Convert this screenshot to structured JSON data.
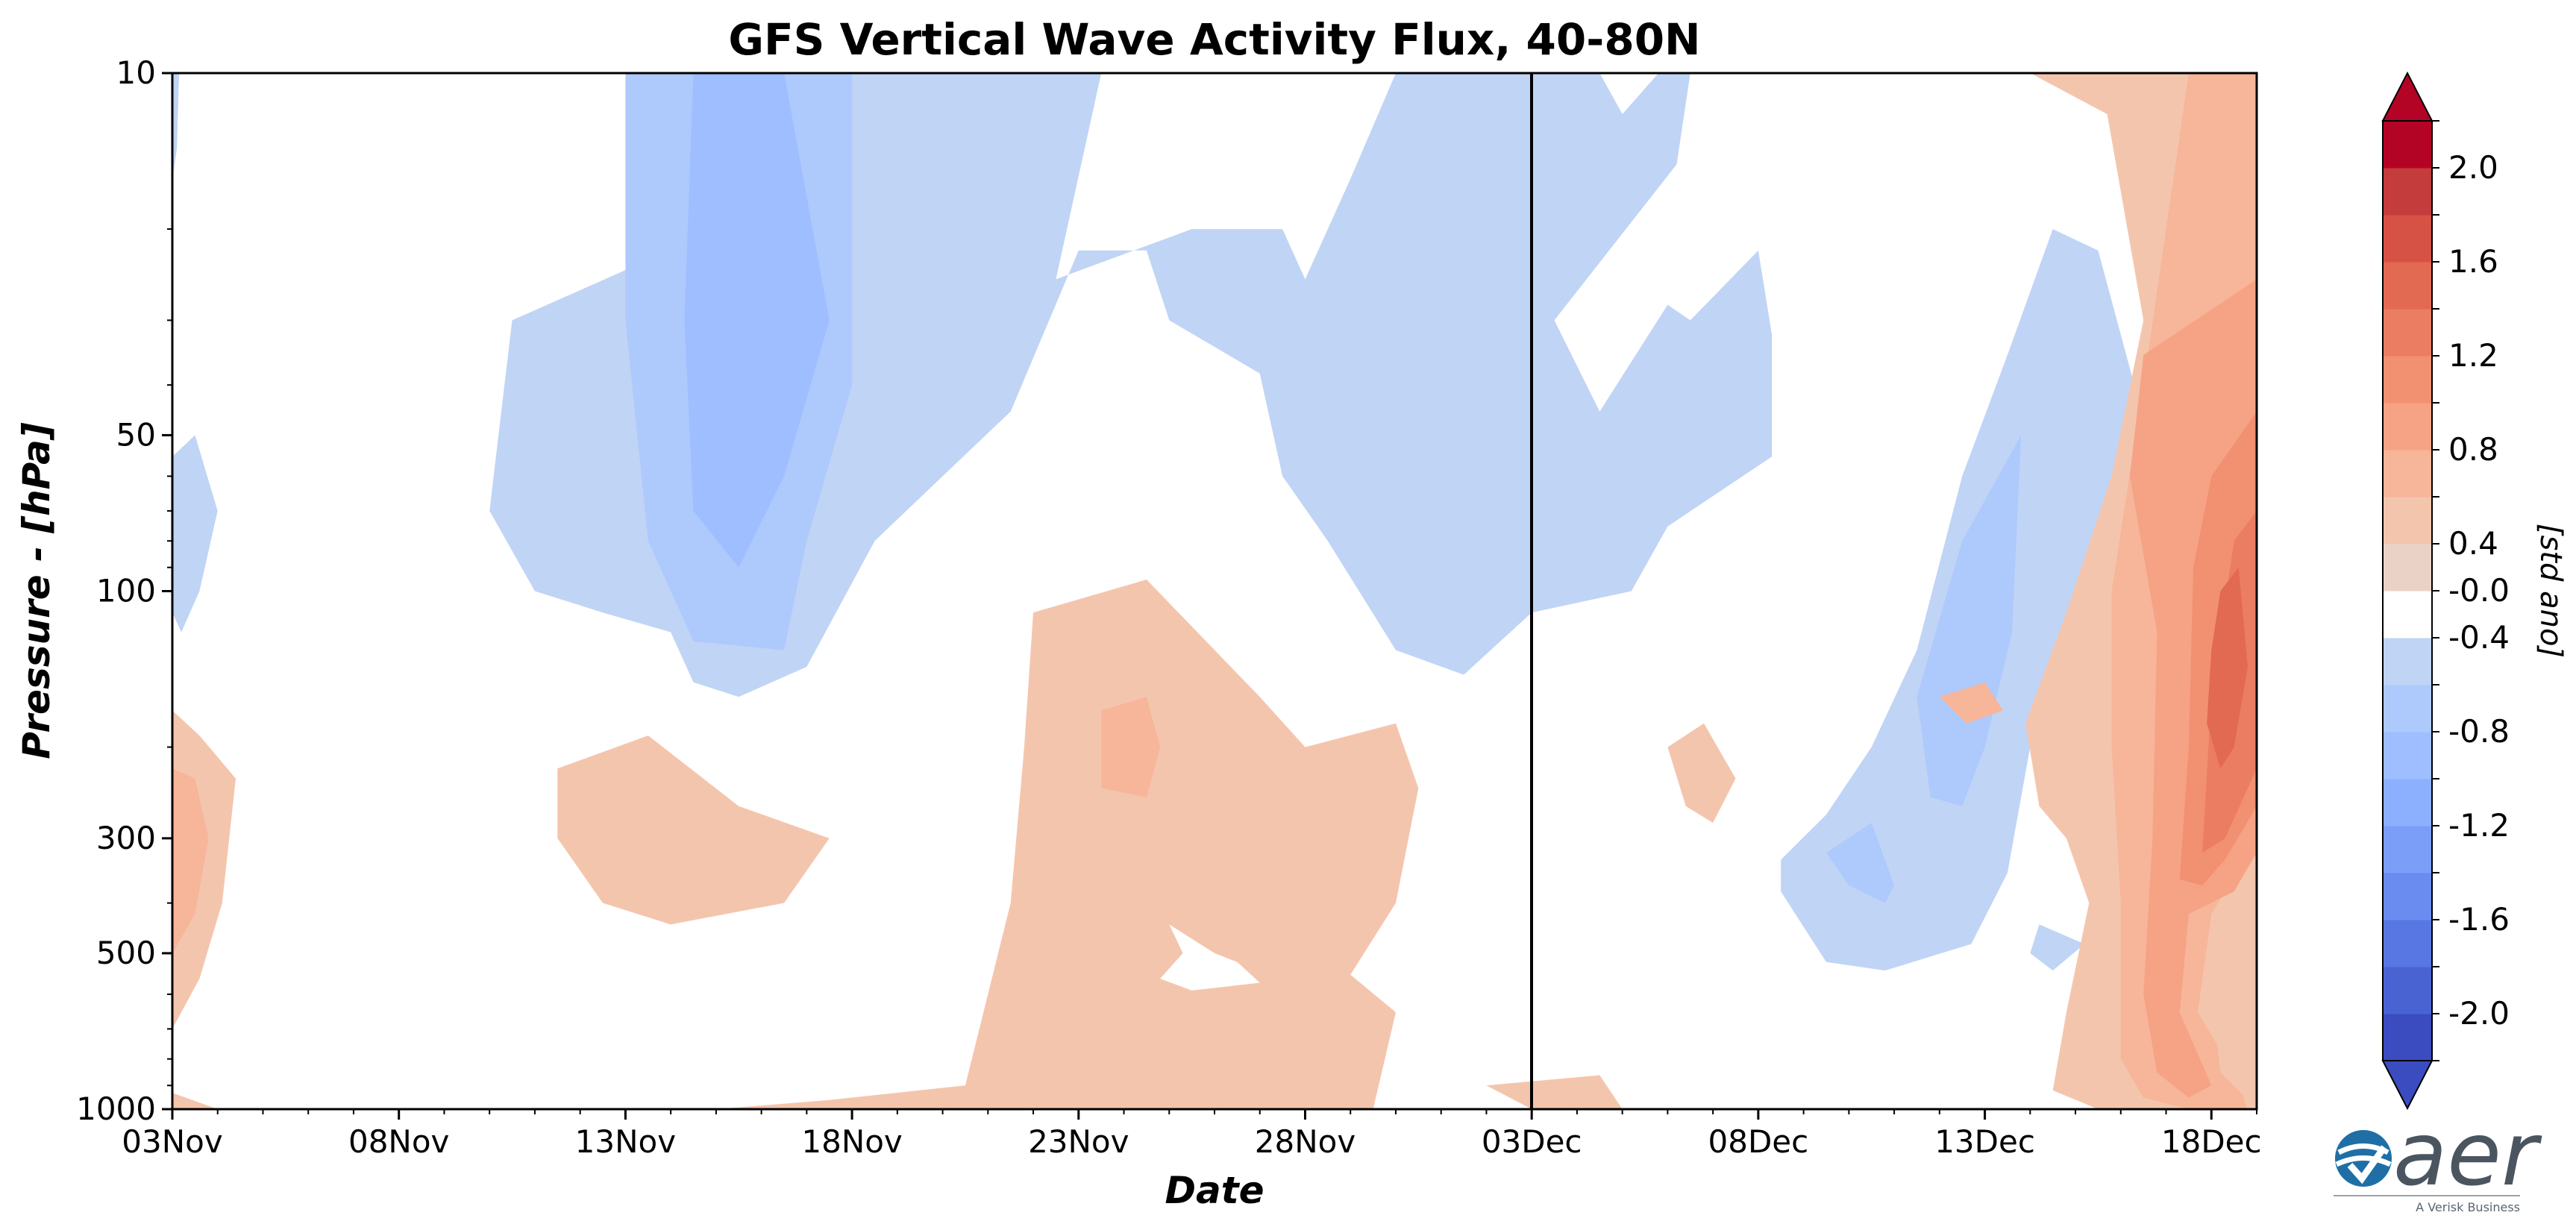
{
  "chart_data": {
    "type": "heatmap",
    "title": "GFS Vertical Wave Activity Flux, 40-80N",
    "xlabel": "Date",
    "ylabel": "Pressure - [hPa]",
    "x_ticks": [
      "03Nov",
      "08Nov",
      "13Nov",
      "18Nov",
      "23Nov",
      "28Nov",
      "03Dec",
      "08Dec",
      "13Dec",
      "18Dec"
    ],
    "x_range": [
      "03Nov",
      "19Dec"
    ],
    "y_ticks": [
      10,
      50,
      100,
      300,
      500,
      1000
    ],
    "y_range": [
      1000,
      10
    ],
    "y_scale": "log",
    "y_inverted": true,
    "forecast_start_line": "03Dec",
    "colorbar": {
      "label": "[std ano]",
      "tick_labels": [
        "2.0",
        "1.6",
        "1.2",
        "0.8",
        "0.4",
        "-0.0",
        "-0.4",
        "-0.8",
        "-1.2",
        "-1.6",
        "-2.0"
      ],
      "levels": [
        -2.0,
        -1.8,
        -1.6,
        -1.4,
        -1.2,
        -1.0,
        -0.8,
        -0.6,
        -0.4,
        -0.2,
        0.2,
        0.4,
        0.6,
        0.8,
        1.0,
        1.2,
        1.4,
        1.6,
        1.8,
        2.0
      ],
      "colors": [
        "#3b4cc0",
        "#4a63d3",
        "#5977e3",
        "#6a8bef",
        "#7b9ff9",
        "#8db0fe",
        "#9ebeff",
        "#aec9fc",
        "#c0d4f5",
        "#ffffff",
        "#ead3c6",
        "#f4c5ad",
        "#f7b599",
        "#f6a385",
        "#f29072",
        "#eb7d62",
        "#e26952",
        "#d65244",
        "#c43c3c",
        "#b40426"
      ],
      "extend": "both"
    },
    "regions": [
      {
        "day": 3.0,
        "p": 70,
        "v": -0.2
      },
      {
        "day": 3.1,
        "p": 260,
        "v": 0.2
      },
      {
        "day": 3.3,
        "p": 270,
        "v": 0.4
      },
      {
        "day": 8.0,
        "p": 300,
        "v": 0.2
      },
      {
        "day": 10.0,
        "p": 40,
        "v": -0.2
      },
      {
        "day": 11.7,
        "p": 30,
        "v": -0.4
      },
      {
        "day": 12.5,
        "p": 30,
        "v": -0.6
      },
      {
        "day": 16.5,
        "p": 500,
        "v": 0.2
      },
      {
        "day": 16.4,
        "p": 180,
        "v": 0.4
      },
      {
        "day": 24.0,
        "p": 40,
        "v": -0.2
      },
      {
        "day": 33.5,
        "p": 250,
        "v": -0.2
      },
      {
        "day": 35.0,
        "p": 170,
        "v": -0.4
      },
      {
        "day": 33.8,
        "p": 320,
        "v": -0.4
      },
      {
        "day": 39.0,
        "p": 300,
        "v": 0.2
      },
      {
        "day": 42.5,
        "p": 150,
        "v": 0.4
      },
      {
        "day": 44.0,
        "p": 100,
        "v": 0.6
      },
      {
        "day": 45.0,
        "p": 120,
        "v": 0.8
      },
      {
        "day": 45.5,
        "p": 150,
        "v": 1.0
      },
      {
        "day": 45.6,
        "p": 170,
        "v": 1.2
      }
    ]
  },
  "logo": {
    "word": "aer",
    "sub": "A Verisk Business"
  }
}
